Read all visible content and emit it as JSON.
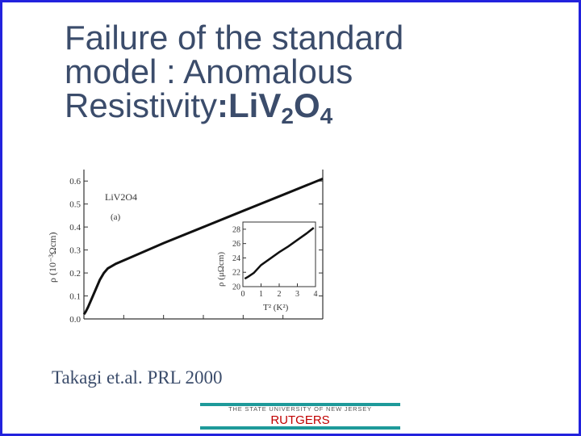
{
  "slide": {
    "title_line1": "Failure of the standard",
    "title_line2": "model : Anomalous",
    "title_line3_prefix": "Resistivity",
    "title_line3_colon": ":",
    "compound": {
      "el1": "Li",
      "el2": "V",
      "sub2": "2",
      "el3": "O",
      "sub3": "4"
    },
    "citation": "Takagi et.al.  PRL  2000",
    "logo_subtext": "THE STATE UNIVERSITY OF NEW JERSEY",
    "logo_text": "RUTGERS",
    "accent_color": "#3b4c6b",
    "frame_color": "#2222dd"
  },
  "chart_data": [
    {
      "type": "line",
      "label_compound": "LiV2O4",
      "panel": "(a)",
      "ylabel": "ρ  (10⁻³Ωcm)",
      "ylim": [
        0,
        0.65
      ],
      "yticks": [
        "0.0",
        "0.1",
        "0.2",
        "0.3",
        "0.4",
        "0.5",
        "0.6"
      ],
      "xlim": [
        0,
        300
      ],
      "series": [
        {
          "x": [
            0,
            2,
            5,
            10,
            15,
            20,
            25,
            30,
            40,
            60,
            100,
            150,
            200,
            250,
            300
          ],
          "values": [
            0.02,
            0.03,
            0.05,
            0.09,
            0.13,
            0.17,
            0.2,
            0.22,
            0.24,
            0.27,
            0.33,
            0.4,
            0.47,
            0.54,
            0.61
          ]
        }
      ]
    },
    {
      "type": "line",
      "inset": true,
      "ylabel": "ρ  (μΩcm)",
      "xlabel": "T² (K²)",
      "ylim": [
        20,
        29
      ],
      "yticks": [
        "20",
        "22",
        "24",
        "26",
        "28"
      ],
      "xticks": [
        "0",
        "1",
        "2",
        "3",
        "4"
      ],
      "xlim": [
        0,
        4
      ],
      "series": [
        {
          "x": [
            0.1,
            0.3,
            0.6,
            1,
            1.5,
            2,
            2.5,
            3,
            3.5,
            3.9
          ],
          "values": [
            21.1,
            21.4,
            21.9,
            23.0,
            23.9,
            24.8,
            25.6,
            26.5,
            27.4,
            28.2
          ]
        }
      ]
    }
  ]
}
